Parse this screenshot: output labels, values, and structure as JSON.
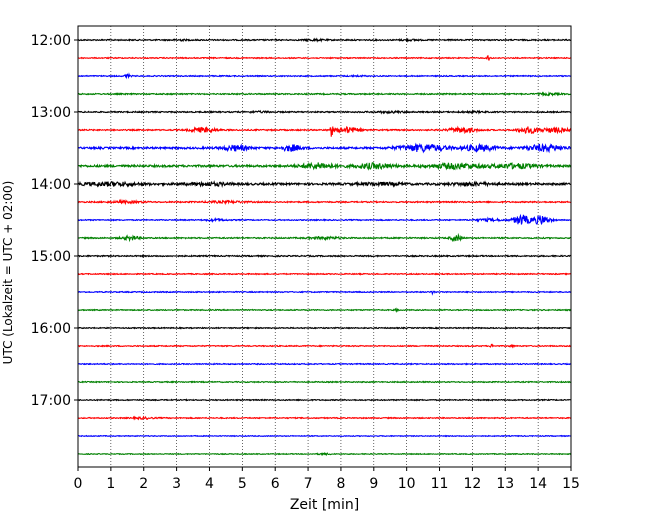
{
  "chart_data": {
    "type": "line",
    "title": "",
    "xlabel": "Zeit  [min]",
    "ylabel": "UTC (Lokalzeit = UTC + 02:00)",
    "xlim": [
      0,
      15
    ],
    "x_ticks": [
      "0",
      "1",
      "2",
      "3",
      "4",
      "5",
      "6",
      "7",
      "8",
      "9",
      "10",
      "11",
      "12",
      "13",
      "14",
      "15"
    ],
    "y_ticks": [
      "12:00",
      "13:00",
      "14:00",
      "15:00",
      "16:00",
      "17:00"
    ],
    "y_tick_trace_index": [
      0,
      4,
      8,
      12,
      16,
      20
    ],
    "grid": "vertical dotted",
    "trace_colors": [
      "#000000",
      "#ff0000",
      "#0000ff",
      "#008000"
    ],
    "traces": [
      {
        "start": "12:00",
        "color": "#000000",
        "noise": 0.6,
        "bursts": [
          [
            3.1,
            0.2,
            0.6
          ],
          [
            7.2,
            0.3,
            0.6
          ],
          [
            10.1,
            0.3,
            0.5
          ]
        ]
      },
      {
        "start": "12:15",
        "color": "#ff0000",
        "noise": 0.5,
        "bursts": [
          [
            12.5,
            0.05,
            3.0
          ]
        ]
      },
      {
        "start": "12:30",
        "color": "#0000ff",
        "noise": 0.5,
        "bursts": [
          [
            1.5,
            0.1,
            1.6
          ],
          [
            8.5,
            0.3,
            0.4
          ]
        ]
      },
      {
        "start": "12:45",
        "color": "#008000",
        "noise": 0.6,
        "bursts": [
          [
            14.3,
            0.3,
            0.8
          ]
        ]
      },
      {
        "start": "13:00",
        "color": "#000000",
        "noise": 0.6,
        "bursts": [
          [
            5.5,
            0.4,
            0.5
          ],
          [
            9.5,
            0.5,
            0.6
          ],
          [
            12.0,
            0.4,
            0.5
          ]
        ]
      },
      {
        "start": "13:15",
        "color": "#ff0000",
        "noise": 0.6,
        "bursts": [
          [
            3.8,
            0.4,
            2.2
          ],
          [
            7.7,
            0.06,
            6.0
          ],
          [
            8.2,
            0.35,
            2.8
          ],
          [
            11.7,
            0.4,
            2.6
          ],
          [
            13.7,
            0.3,
            3.0
          ],
          [
            14.5,
            0.4,
            2.2
          ]
        ]
      },
      {
        "start": "13:30",
        "color": "#0000ff",
        "noise": 0.9,
        "bursts": [
          [
            4.8,
            0.4,
            2.6
          ],
          [
            6.5,
            0.3,
            3.0
          ],
          [
            10.5,
            0.7,
            3.4
          ],
          [
            12.2,
            0.5,
            2.8
          ],
          [
            14.2,
            0.6,
            3.0
          ]
        ]
      },
      {
        "start": "13:45",
        "color": "#008000",
        "noise": 1.0,
        "bursts": [
          [
            7.3,
            0.5,
            2.6
          ],
          [
            9.0,
            0.6,
            2.4
          ],
          [
            11.5,
            0.8,
            2.4
          ],
          [
            13.3,
            0.6,
            2.2
          ]
        ]
      },
      {
        "start": "14:00",
        "color": "#000000",
        "noise": 1.0,
        "bursts": [
          [
            1.0,
            0.8,
            1.6
          ],
          [
            4.0,
            0.6,
            1.4
          ],
          [
            9.2,
            0.6,
            1.2
          ],
          [
            12.0,
            0.6,
            1.2
          ]
        ]
      },
      {
        "start": "14:15",
        "color": "#ff0000",
        "noise": 0.6,
        "bursts": [
          [
            1.5,
            0.5,
            0.8
          ],
          [
            4.5,
            0.6,
            0.8
          ]
        ]
      },
      {
        "start": "14:30",
        "color": "#0000ff",
        "noise": 0.5,
        "bursts": [
          [
            4.2,
            0.3,
            1.0
          ],
          [
            13.5,
            0.25,
            5.0
          ],
          [
            14.1,
            0.25,
            4.5
          ],
          [
            12.5,
            0.4,
            1.2
          ]
        ]
      },
      {
        "start": "14:45",
        "color": "#008000",
        "noise": 0.6,
        "bursts": [
          [
            1.6,
            0.25,
            2.0
          ],
          [
            7.5,
            0.5,
            1.0
          ],
          [
            11.5,
            0.15,
            3.2
          ]
        ]
      },
      {
        "start": "15:00",
        "color": "#000000",
        "noise": 0.6,
        "bursts": []
      },
      {
        "start": "15:15",
        "color": "#ff0000",
        "noise": 0.5,
        "bursts": []
      },
      {
        "start": "15:30",
        "color": "#0000ff",
        "noise": 0.5,
        "bursts": [
          [
            10.8,
            0.05,
            1.6
          ]
        ]
      },
      {
        "start": "15:45",
        "color": "#008000",
        "noise": 0.5,
        "bursts": [
          [
            9.7,
            0.05,
            1.4
          ]
        ]
      },
      {
        "start": "16:00",
        "color": "#000000",
        "noise": 0.5,
        "bursts": []
      },
      {
        "start": "16:15",
        "color": "#ff0000",
        "noise": 0.5,
        "bursts": [
          [
            12.6,
            0.05,
            2.0
          ],
          [
            13.2,
            0.05,
            1.4
          ]
        ]
      },
      {
        "start": "16:30",
        "color": "#0000ff",
        "noise": 0.5,
        "bursts": []
      },
      {
        "start": "16:45",
        "color": "#008000",
        "noise": 0.5,
        "bursts": []
      },
      {
        "start": "17:00",
        "color": "#000000",
        "noise": 0.5,
        "bursts": []
      },
      {
        "start": "17:15",
        "color": "#ff0000",
        "noise": 0.5,
        "bursts": [
          [
            2.0,
            0.3,
            0.8
          ]
        ]
      },
      {
        "start": "17:30",
        "color": "#0000ff",
        "noise": 0.4,
        "bursts": []
      },
      {
        "start": "17:45",
        "color": "#008000",
        "noise": 0.4,
        "bursts": [
          [
            7.5,
            0.2,
            0.6
          ]
        ]
      }
    ]
  }
}
